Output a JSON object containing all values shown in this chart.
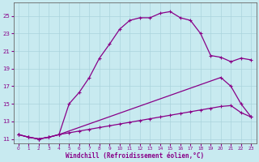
{
  "xlabel": "Windchill (Refroidissement éolien,°C)",
  "background_color": "#c8eaf0",
  "grid_color": "#aad4dc",
  "line_color": "#880088",
  "line1_x": [
    0,
    1,
    2,
    3,
    4,
    5,
    6,
    7,
    8,
    9,
    10,
    11,
    12,
    13,
    14,
    15,
    16,
    17,
    18,
    19,
    20,
    21,
    22,
    23
  ],
  "line1_y": [
    11.5,
    11.2,
    11.0,
    11.2,
    11.5,
    15.0,
    16.3,
    18.0,
    20.2,
    21.8,
    23.5,
    24.5,
    24.8,
    24.8,
    25.3,
    25.5,
    24.8,
    24.5,
    23.0,
    20.5,
    20.3,
    19.8,
    20.2,
    20.0
  ],
  "line2_x": [
    0,
    1,
    2,
    3,
    4,
    20,
    21,
    22,
    23
  ],
  "line2_y": [
    11.5,
    11.2,
    11.0,
    11.2,
    11.5,
    18.0,
    17.0,
    15.0,
    13.5
  ],
  "line3_x": [
    0,
    1,
    2,
    3,
    4,
    5,
    6,
    7,
    8,
    9,
    10,
    11,
    12,
    13,
    14,
    15,
    16,
    17,
    18,
    19,
    20,
    21,
    22,
    23
  ],
  "line3_y": [
    11.5,
    11.2,
    11.0,
    11.2,
    11.5,
    11.7,
    11.9,
    12.1,
    12.3,
    12.5,
    12.7,
    12.9,
    13.1,
    13.3,
    13.5,
    13.7,
    13.9,
    14.1,
    14.3,
    14.5,
    14.7,
    14.8,
    14.0,
    13.5
  ],
  "xlim": [
    -0.5,
    23.5
  ],
  "ylim": [
    10.5,
    26.5
  ],
  "xticks": [
    0,
    1,
    2,
    3,
    4,
    5,
    6,
    7,
    8,
    9,
    10,
    11,
    12,
    13,
    14,
    15,
    16,
    17,
    18,
    19,
    20,
    21,
    22,
    23
  ],
  "yticks": [
    11,
    13,
    15,
    17,
    19,
    21,
    23,
    25
  ]
}
